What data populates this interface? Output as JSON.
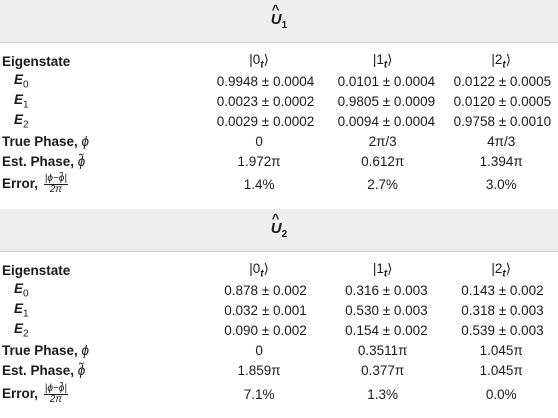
{
  "tables": [
    {
      "operator": "U",
      "operator_sub": "1",
      "header": {
        "label": "Eigenstate",
        "cols": [
          "|0",
          "|1",
          "|2"
        ],
        "ket_sub": "t",
        "ket_close": "⟩"
      },
      "rows": [
        {
          "label": "E",
          "sub": "0",
          "values": [
            "0.9948 ± 0.0004",
            "0.0101 ± 0.0004",
            "0.0122 ± 0.0005"
          ]
        },
        {
          "label": "E",
          "sub": "1",
          "values": [
            "0.0023 ± 0.0002",
            "0.9805 ± 0.0009",
            "0.0120 ± 0.0005"
          ]
        },
        {
          "label": "E",
          "sub": "2",
          "values": [
            "0.0029 ± 0.0002",
            "0.0094 ± 0.0004",
            "0.9758 ± 0.0010"
          ]
        }
      ],
      "true_phase": {
        "label": "True Phase, ",
        "sym": "ϕ",
        "values": [
          "0",
          "2π/3",
          "4π/3"
        ]
      },
      "est_phase": {
        "label": "Est. Phase, ",
        "sym": "ϕ̃",
        "values": [
          "1.972π",
          "0.612π",
          "1.394π"
        ]
      },
      "error": {
        "label": "Error, ",
        "num": "|ϕ−ϕ̃|",
        "den": "2π",
        "values": [
          "1.4%",
          "2.7%",
          "3.0%"
        ]
      }
    },
    {
      "operator": "U",
      "operator_sub": "2",
      "header": {
        "label": "Eigenstate",
        "cols": [
          "|0",
          "|1",
          "|2"
        ],
        "ket_sub": "t",
        "ket_close": "⟩"
      },
      "rows": [
        {
          "label": "E",
          "sub": "0",
          "values": [
            "0.878 ± 0.002",
            "0.316 ± 0.003",
            "0.143 ± 0.002"
          ]
        },
        {
          "label": "E",
          "sub": "1",
          "values": [
            "0.032 ± 0.001",
            "0.530 ± 0.003",
            "0.318 ± 0.003"
          ]
        },
        {
          "label": "E",
          "sub": "2",
          "values": [
            "0.090 ± 0.002",
            "0.154 ± 0.002",
            "0.539 ± 0.003"
          ]
        }
      ],
      "true_phase": {
        "label": "True Phase, ",
        "sym": "ϕ",
        "values": [
          "0",
          "0.3511π",
          "1.045π"
        ]
      },
      "est_phase": {
        "label": "Est. Phase, ",
        "sym": "ϕ̃",
        "values": [
          "1.859π",
          "0.377π",
          "1.045π"
        ]
      },
      "error": {
        "label": "Error, ",
        "num": "|ϕ−ϕ̃|",
        "den": "2π",
        "values": [
          "7.1%",
          "1.3%",
          "0.0%"
        ]
      }
    }
  ]
}
